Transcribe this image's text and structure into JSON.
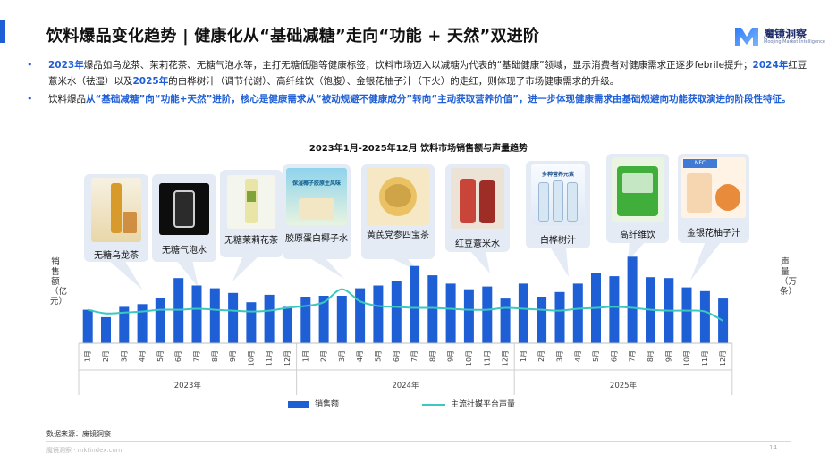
{
  "header": {
    "title": "饮料爆品变化趋势 | 健康化从“基础减糖”走向“功能 + 天然”双进阶",
    "logo_text": "魔镜洞察",
    "logo_sub": "Moojing Market Intelligence"
  },
  "bullets": {
    "b1": {
      "y2023": "2023年",
      "t1": "爆品如乌龙茶、茉莉花茶、无糖气泡水等，主打无糖低脂等健康标签，饮料市场迈入以减糖为代表的“基础健康”领域，显示消费者对健康需求正逐步febrile提升；",
      "y2024": "2024年",
      "t2": "红豆薏米水（祛湿）以及",
      "y2025": "2025年",
      "t3": "的白桦树汁（调节代谢）、高纤维饮（饱腹）、金银花柚子汁（下火）的走红，则体现了市场健康需求的升级。"
    },
    "b2": {
      "t1": "饮料爆品",
      "h1": "从“基础减糖”向“功能+天然”进阶，核心是健康需求从“被动规避不健康成分”转向“主动获取营养价值”，进一步体现健康需求由基础规避向功能获取演进的阶段性特征。"
    }
  },
  "products": [
    {
      "label": "无糖乌龙茶"
    },
    {
      "label": "无糖气泡水"
    },
    {
      "label": "无糖茉莉花茶"
    },
    {
      "label": "胶原蛋白椰子水",
      "image_text": "保湿椰子胶原生风味"
    },
    {
      "label": "黄芪党参四宝茶"
    },
    {
      "label": "红豆薏米水"
    },
    {
      "label": "白桦树汁",
      "image_text": "多种营养元素"
    },
    {
      "label": "高纤维饮"
    },
    {
      "label": "金银花柚子汁",
      "image_text": "NFC"
    }
  ],
  "chart_data": {
    "type": "bar",
    "title": "2023年1月-2025年12月 饮料市场销售额与声量趋势",
    "ylabel_left": "销售额（亿元）",
    "ylabel_right": "声量（万条）",
    "categories": [
      "1月",
      "2月",
      "3月",
      "4月",
      "5月",
      "6月",
      "7月",
      "8月",
      "9月",
      "10月",
      "11月",
      "12月",
      "1月",
      "2月",
      "3月",
      "4月",
      "5月",
      "6月",
      "7月",
      "8月",
      "9月",
      "10月",
      "11月",
      "12月",
      "1月",
      "2月",
      "3月",
      "4月",
      "5月",
      "6月",
      "7月",
      "8月",
      "9月",
      "10月",
      "11月",
      "12月"
    ],
    "year_groups": [
      "2023年",
      "2024年",
      "2025年"
    ],
    "series": [
      {
        "name": "销售额",
        "type": "bar",
        "color": "#1f5fd6",
        "values": [
          36,
          28,
          39,
          42,
          49,
          70,
          62,
          59,
          54,
          44,
          52,
          39,
          50,
          51,
          51,
          59,
          62,
          67,
          83,
          73,
          64,
          58,
          61,
          48,
          64,
          50,
          55,
          64,
          76,
          72,
          93,
          71,
          70,
          60,
          56,
          48
        ]
      },
      {
        "name": "主流社媒平台声量",
        "type": "line",
        "color": "#3cc7bf",
        "values": [
          36,
          32,
          33,
          34,
          36,
          36,
          37,
          36,
          35,
          34,
          35,
          38,
          40,
          44,
          58,
          45,
          40,
          39,
          38,
          38,
          37,
          36,
          36,
          38,
          37,
          36,
          35,
          37,
          38,
          39,
          38,
          36,
          35,
          35,
          34,
          24
        ]
      }
    ]
  },
  "footer": {
    "source": "数据来源：魔镜洞察",
    "site": "魔镜洞察 · mktindex.com",
    "page": "14"
  }
}
